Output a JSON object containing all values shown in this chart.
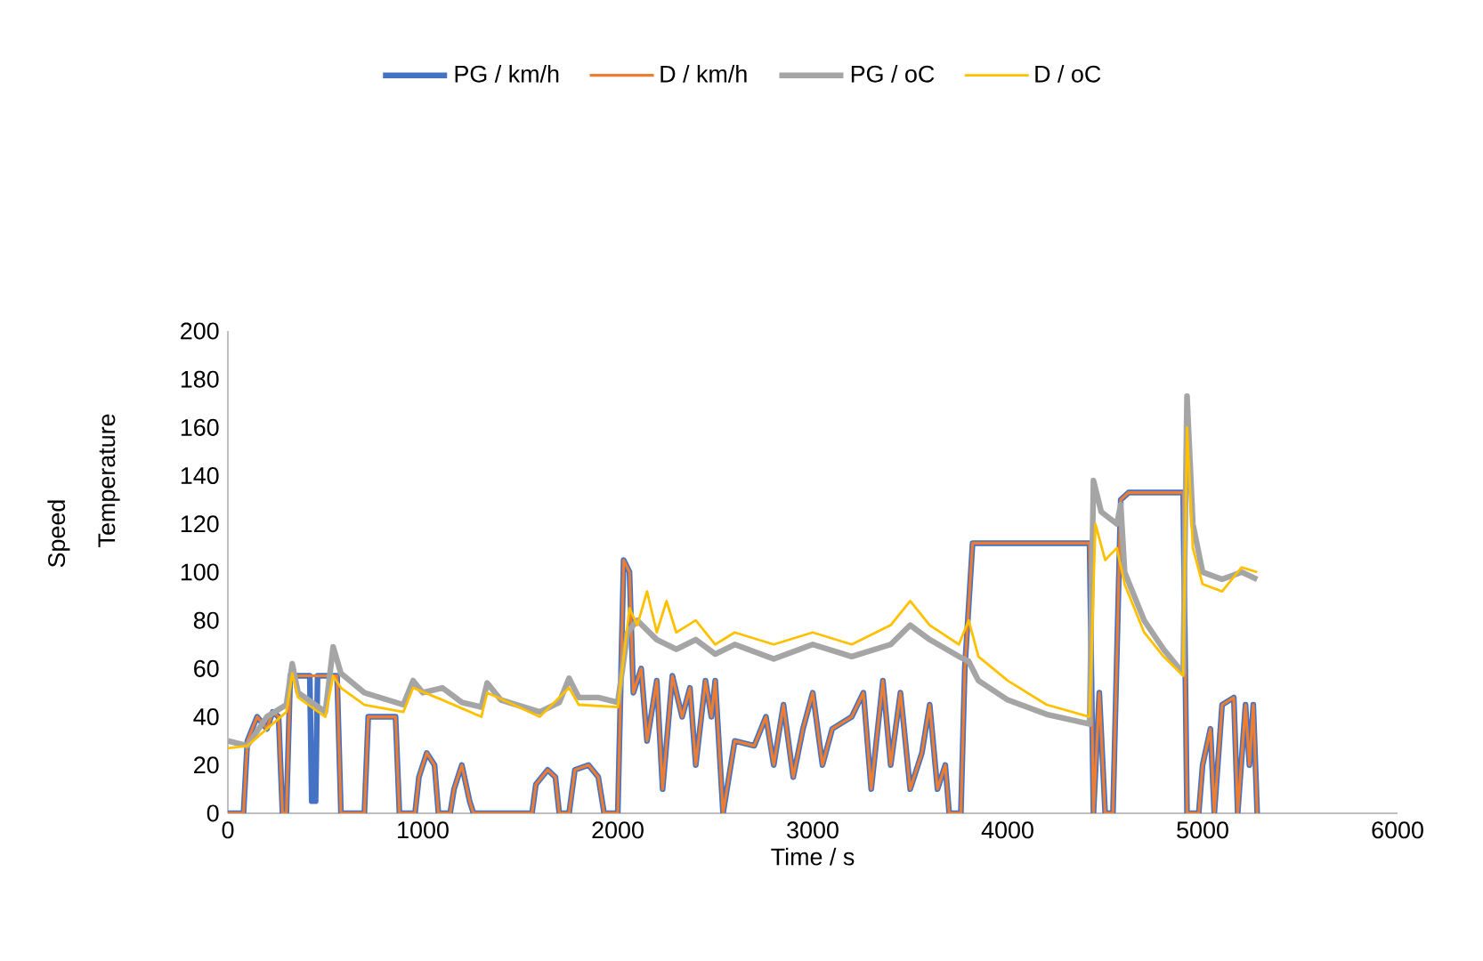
{
  "chart_data": {
    "type": "line",
    "xlabel": "Time / s",
    "ylabel": "Speed",
    "annotations": [
      "Temperature"
    ],
    "xlim": [
      0,
      6000
    ],
    "xticks": [
      0,
      1000,
      2000,
      3000,
      4000,
      5000,
      6000
    ],
    "ylim": [
      0,
      200
    ],
    "yticks": [
      0,
      20,
      40,
      60,
      80,
      100,
      120,
      140,
      160,
      180,
      200
    ],
    "grid": false,
    "legend": "top",
    "marker": "none",
    "line_style": "solid",
    "series": [
      {
        "name": "PG / km/h",
        "color": "#4472c4",
        "x": [
          0,
          80,
          100,
          150,
          200,
          230,
          260,
          280,
          300,
          320,
          420,
          430,
          440,
          450,
          460,
          560,
          580,
          700,
          720,
          860,
          880,
          960,
          980,
          1020,
          1060,
          1080,
          1140,
          1160,
          1200,
          1240,
          1260,
          1560,
          1580,
          1640,
          1680,
          1700,
          1750,
          1780,
          1850,
          1900,
          1930,
          2000,
          2030,
          2060,
          2080,
          2120,
          2150,
          2200,
          2230,
          2280,
          2330,
          2370,
          2400,
          2450,
          2480,
          2500,
          2540,
          2600,
          2700,
          2760,
          2800,
          2850,
          2900,
          2950,
          3000,
          3050,
          3100,
          3200,
          3260,
          3300,
          3360,
          3400,
          3450,
          3500,
          3560,
          3600,
          3640,
          3680,
          3700,
          3760,
          3780,
          3820,
          4420,
          4440,
          4470,
          4500,
          4540,
          4580,
          4620,
          4900,
          4920,
          4980,
          5000,
          5040,
          5060,
          5100,
          5160,
          5180,
          5220,
          5240,
          5260,
          5280
        ],
        "values": [
          0,
          0,
          30,
          40,
          35,
          42,
          40,
          0,
          0,
          57,
          57,
          5,
          5,
          5,
          57,
          57,
          0,
          0,
          40,
          40,
          0,
          0,
          15,
          25,
          20,
          0,
          0,
          10,
          20,
          5,
          0,
          0,
          12,
          18,
          15,
          0,
          0,
          18,
          20,
          15,
          0,
          0,
          105,
          100,
          50,
          60,
          30,
          55,
          10,
          57,
          40,
          52,
          20,
          55,
          40,
          55,
          0,
          30,
          28,
          40,
          20,
          45,
          15,
          35,
          50,
          20,
          35,
          40,
          50,
          10,
          55,
          20,
          50,
          10,
          25,
          45,
          10,
          20,
          0,
          0,
          60,
          112,
          112,
          0,
          50,
          0,
          0,
          130,
          133,
          133,
          0,
          0,
          20,
          35,
          0,
          45,
          48,
          0,
          45,
          20,
          45,
          0
        ]
      },
      {
        "name": "D / km/h",
        "color": "#ed7d31",
        "x": [
          0,
          80,
          100,
          150,
          200,
          230,
          260,
          280,
          300,
          320,
          420,
          430,
          440,
          450,
          460,
          560,
          580,
          700,
          720,
          860,
          880,
          960,
          980,
          1020,
          1060,
          1080,
          1140,
          1160,
          1200,
          1240,
          1260,
          1560,
          1580,
          1640,
          1680,
          1700,
          1750,
          1780,
          1850,
          1900,
          1930,
          2000,
          2030,
          2060,
          2080,
          2120,
          2150,
          2200,
          2230,
          2280,
          2330,
          2370,
          2400,
          2450,
          2480,
          2500,
          2540,
          2600,
          2700,
          2760,
          2800,
          2850,
          2900,
          2950,
          3000,
          3050,
          3100,
          3200,
          3260,
          3300,
          3360,
          3400,
          3450,
          3500,
          3560,
          3600,
          3640,
          3680,
          3700,
          3760,
          3780,
          3820,
          4420,
          4440,
          4470,
          4500,
          4540,
          4580,
          4620,
          4900,
          4920,
          4980,
          5000,
          5040,
          5060,
          5100,
          5160,
          5180,
          5220,
          5240,
          5260,
          5280
        ],
        "values": [
          0,
          0,
          30,
          40,
          35,
          42,
          40,
          0,
          0,
          57,
          57,
          57,
          57,
          57,
          57,
          57,
          0,
          0,
          40,
          40,
          0,
          0,
          15,
          25,
          20,
          0,
          0,
          10,
          20,
          5,
          0,
          0,
          12,
          18,
          15,
          0,
          0,
          18,
          20,
          15,
          0,
          0,
          105,
          100,
          50,
          60,
          30,
          55,
          10,
          57,
          40,
          52,
          20,
          55,
          40,
          55,
          0,
          30,
          28,
          40,
          20,
          45,
          15,
          35,
          50,
          20,
          35,
          40,
          50,
          10,
          55,
          20,
          50,
          10,
          25,
          45,
          10,
          20,
          0,
          0,
          60,
          112,
          112,
          0,
          50,
          0,
          0,
          130,
          133,
          133,
          0,
          0,
          20,
          35,
          0,
          45,
          48,
          0,
          45,
          20,
          45,
          0
        ]
      },
      {
        "name": "PG / oC",
        "color": "#a5a5a5",
        "x": [
          0,
          100,
          200,
          300,
          330,
          360,
          500,
          540,
          580,
          700,
          900,
          950,
          1000,
          1100,
          1200,
          1300,
          1330,
          1400,
          1600,
          1700,
          1750,
          1800,
          1900,
          2000,
          2050,
          2100,
          2200,
          2300,
          2400,
          2500,
          2600,
          2800,
          3000,
          3200,
          3400,
          3500,
          3600,
          3750,
          3800,
          3850,
          4000,
          4200,
          4420,
          4440,
          4480,
          4560,
          4580,
          4600,
          4700,
          4800,
          4900,
          4920,
          4950,
          5000,
          5100,
          5200,
          5280
        ],
        "values": [
          30,
          28,
          40,
          45,
          62,
          50,
          42,
          69,
          58,
          50,
          45,
          55,
          50,
          52,
          46,
          44,
          54,
          47,
          42,
          46,
          56,
          48,
          48,
          46,
          75,
          80,
          72,
          68,
          72,
          66,
          70,
          64,
          70,
          65,
          70,
          78,
          72,
          65,
          63,
          55,
          47,
          41,
          37,
          138,
          125,
          120,
          128,
          100,
          80,
          68,
          58,
          173,
          120,
          100,
          97,
          100,
          97
        ]
      },
      {
        "name": "D / oC",
        "color": "#ffc000",
        "x": [
          0,
          100,
          200,
          300,
          330,
          360,
          500,
          540,
          580,
          700,
          900,
          950,
          1100,
          1300,
          1330,
          1600,
          1750,
          1800,
          2000,
          2060,
          2100,
          2150,
          2200,
          2250,
          2300,
          2400,
          2500,
          2600,
          2800,
          3000,
          3200,
          3400,
          3500,
          3600,
          3750,
          3800,
          3850,
          4000,
          4200,
          4420,
          4450,
          4500,
          4560,
          4600,
          4700,
          4800,
          4900,
          4920,
          4950,
          5000,
          5100,
          5200,
          5280
        ],
        "values": [
          27,
          28,
          35,
          42,
          58,
          48,
          40,
          57,
          52,
          45,
          42,
          52,
          47,
          40,
          50,
          40,
          52,
          45,
          44,
          85,
          78,
          92,
          75,
          88,
          75,
          80,
          70,
          75,
          70,
          75,
          70,
          78,
          88,
          78,
          70,
          80,
          65,
          55,
          45,
          40,
          120,
          105,
          110,
          95,
          75,
          65,
          57,
          160,
          110,
          95,
          92,
          102,
          100
        ]
      }
    ]
  }
}
